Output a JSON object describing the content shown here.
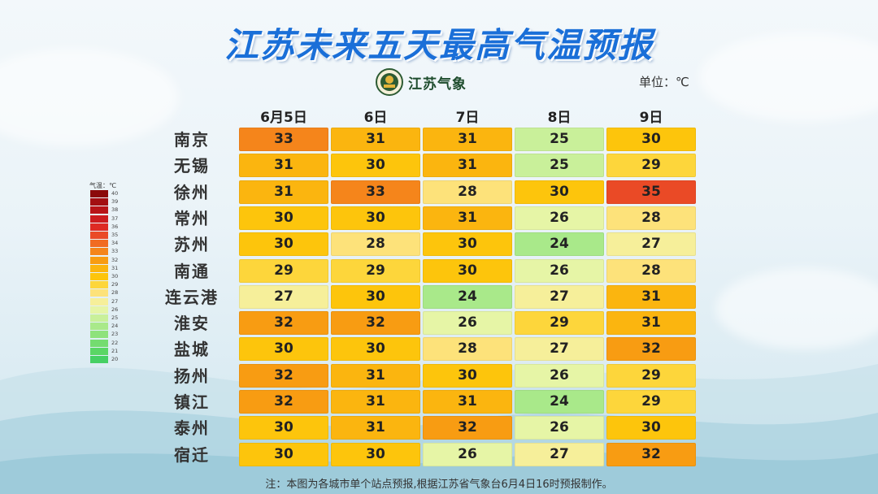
{
  "title": "江苏未来五天最高气温预报",
  "logo": {
    "text": "江苏气象"
  },
  "unit_label": "单位：℃",
  "footnote": "注：本图为各城市单个站点预报,根据江苏省气象台6月4日16时预报制作。",
  "chart_data": {
    "type": "heatmap",
    "columns": [
      "6月5日",
      "6日",
      "7日",
      "8日",
      "9日"
    ],
    "rows": [
      "南京",
      "无锡",
      "徐州",
      "常州",
      "苏州",
      "南通",
      "连云港",
      "淮安",
      "盐城",
      "扬州",
      "镇江",
      "泰州",
      "宿迁"
    ],
    "values": [
      [
        33,
        31,
        31,
        25,
        30
      ],
      [
        31,
        30,
        31,
        25,
        29
      ],
      [
        31,
        33,
        28,
        30,
        35
      ],
      [
        30,
        30,
        31,
        26,
        28
      ],
      [
        30,
        28,
        30,
        24,
        27
      ],
      [
        29,
        29,
        30,
        26,
        28
      ],
      [
        27,
        30,
        24,
        27,
        31
      ],
      [
        32,
        32,
        26,
        29,
        31
      ],
      [
        30,
        30,
        28,
        27,
        32
      ],
      [
        32,
        31,
        30,
        26,
        29
      ],
      [
        32,
        31,
        31,
        24,
        29
      ],
      [
        30,
        31,
        32,
        26,
        30
      ],
      [
        30,
        30,
        26,
        27,
        32
      ]
    ],
    "legend": {
      "title": "气温：℃",
      "levels": [
        40,
        39,
        38,
        37,
        36,
        35,
        34,
        33,
        32,
        31,
        30,
        29,
        28,
        27,
        26,
        25,
        24,
        23,
        22,
        21,
        20
      ],
      "colors": [
        "#8b0a0a",
        "#a30f12",
        "#b81418",
        "#cc1c1f",
        "#de2a24",
        "#ea4a26",
        "#f16b22",
        "#f5851b",
        "#f89c12",
        "#fbb50f",
        "#fdc50c",
        "#fdd63b",
        "#fde27a",
        "#f6ef9a",
        "#e6f5a6",
        "#c9f09a",
        "#a9e98a",
        "#8ee27c",
        "#74dc70",
        "#5ad665",
        "#46d064"
      ]
    }
  }
}
